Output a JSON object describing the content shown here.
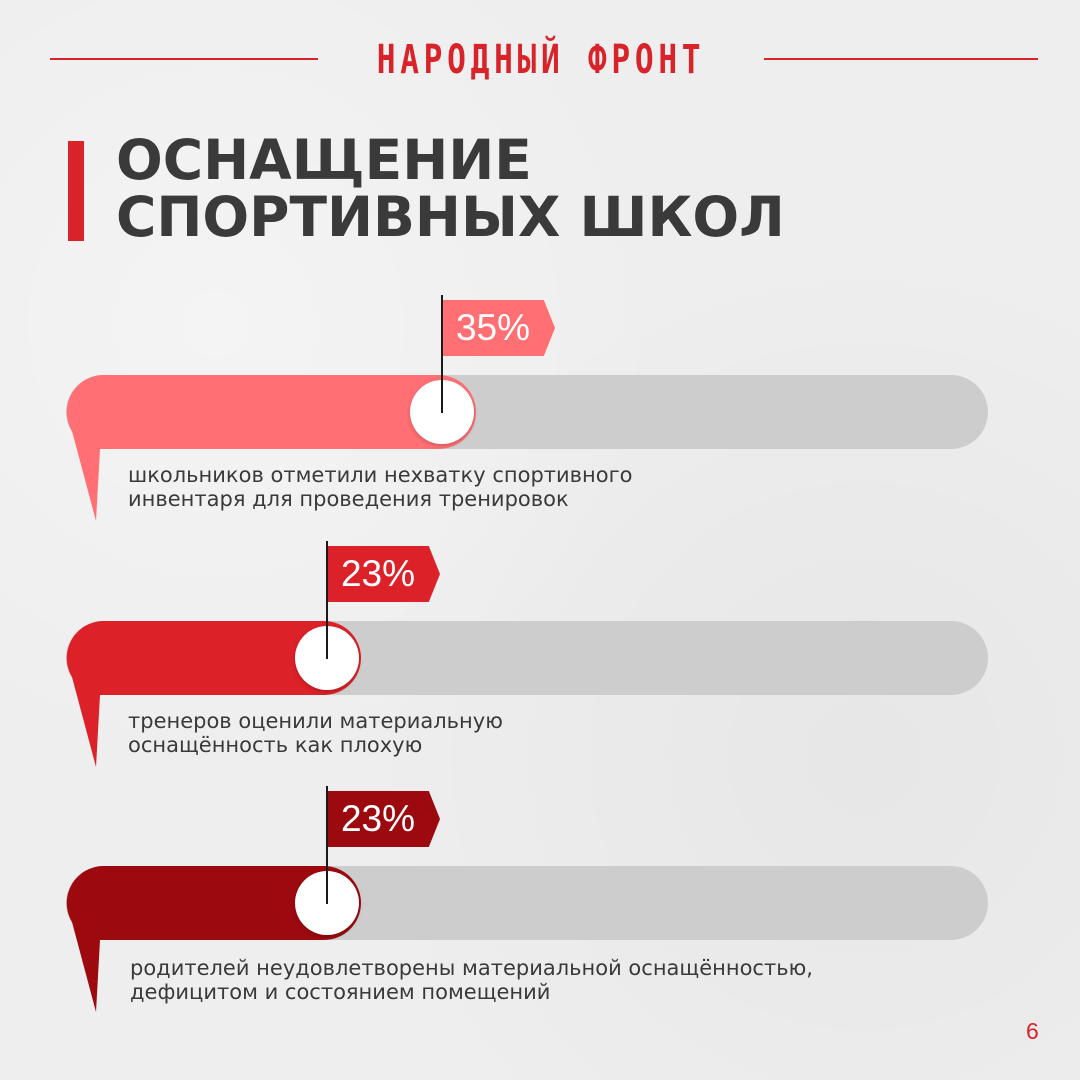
{
  "header": {
    "brand": "НАРОДНЫЙ ФРОНТ"
  },
  "title": {
    "line1": "ОСНАЩЕНИЕ",
    "line2": "СПОРТИВНЫХ ШКОЛ"
  },
  "stats": [
    {
      "value_label": "35%",
      "value_fraction": 0.35,
      "description": "школьников отметили нехватку спортивного\nинвентаря для проведения тренировок",
      "color": "#ff6f73"
    },
    {
      "value_label": "23%",
      "value_fraction": 0.23,
      "description": "тренеров оценили материальную\nоснащённость как плохую",
      "color": "#dc2128"
    },
    {
      "value_label": "23%",
      "value_fraction": 0.23,
      "description": "родителей неудовлетворены материальной оснащённостью,\nдефицитом и состоянием помещений",
      "color": "#9c0a10"
    }
  ],
  "colors": {
    "accent": "#d8232a",
    "track": "#cdcdcd",
    "title_text": "#3a3a3a",
    "background": "#eeeeee"
  },
  "page_number": "6"
}
